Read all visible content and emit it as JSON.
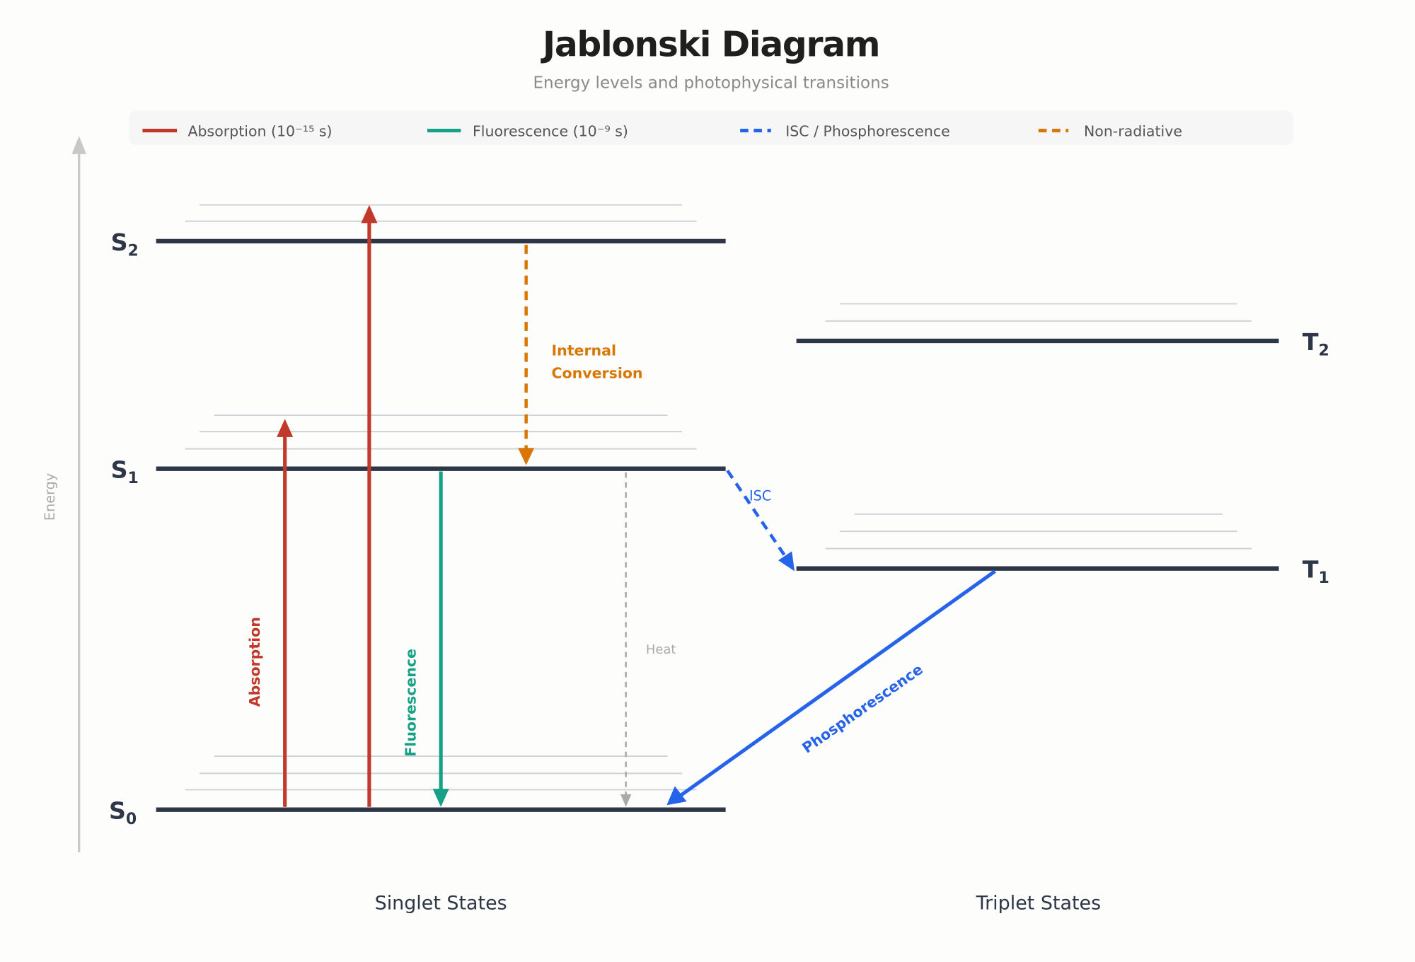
{
  "title": "Jablonski Diagram",
  "subtitle": "Energy levels and photophysical transitions",
  "legend": [
    {
      "label": "Absorption (10⁻¹⁵ s)",
      "color": "#c0392b",
      "style": "solid"
    },
    {
      "label": "Fluorescence (10⁻⁹ s)",
      "color": "#16a085",
      "style": "solid"
    },
    {
      "label": "ISC / Phosphorescence",
      "color": "#2563eb",
      "style": "dashed"
    },
    {
      "label": "Non-radiative",
      "color": "#d97706",
      "style": "dashed"
    }
  ],
  "axis_label": "Energy",
  "states": {
    "S2": {
      "letter": "S",
      "sub": "2"
    },
    "S1": {
      "letter": "S",
      "sub": "1"
    },
    "S0": {
      "letter": "S",
      "sub": "0"
    },
    "T2": {
      "letter": "T",
      "sub": "2"
    },
    "T1": {
      "letter": "T",
      "sub": "1"
    }
  },
  "transitions": {
    "absorption": "Absorption",
    "fluorescence": "Fluorescence",
    "internal_conversion": [
      "Internal",
      "Conversion"
    ],
    "heat": "Heat",
    "isc": "ISC",
    "phosphorescence": "Phosphorescence"
  },
  "groups": {
    "singlet": "Singlet States",
    "triplet": "Triplet States"
  },
  "colors": {
    "absorption": "#c0392b",
    "fluorescence": "#16a085",
    "isc": "#2563eb",
    "nonradiative": "#d97706",
    "heat": "#aaaaaa",
    "level": "#2d3748"
  }
}
